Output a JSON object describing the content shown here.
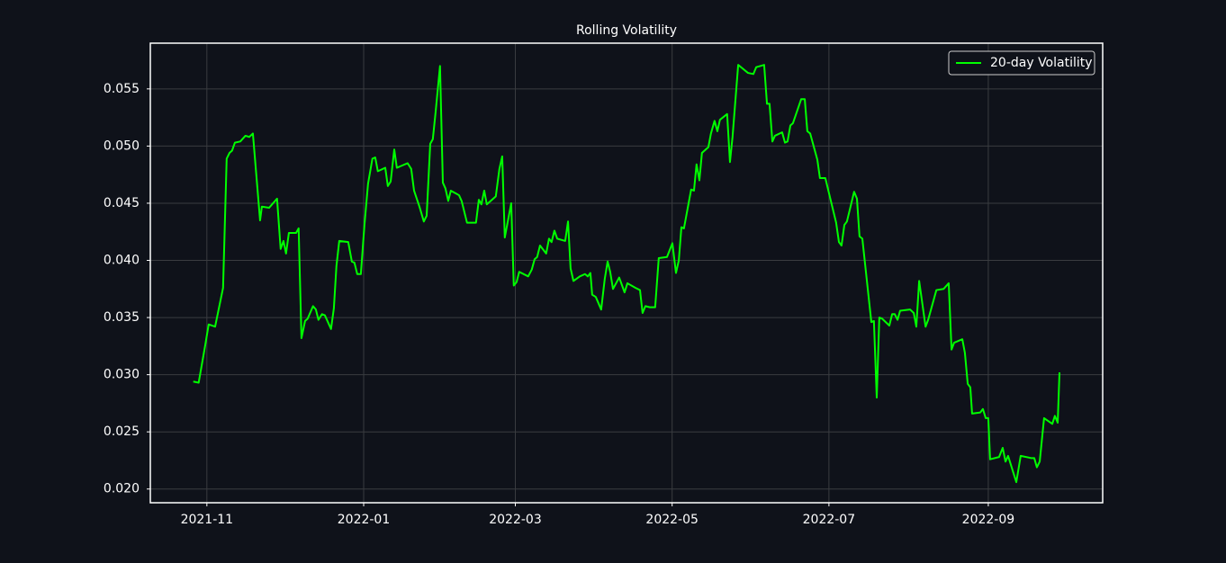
{
  "chart_data": {
    "type": "line",
    "title": "Rolling Volatility",
    "x": [
      -5.3,
      -3.2,
      -0.7,
      0.7,
      3.2,
      6.3,
      7.7,
      8.8,
      9.8,
      10.9,
      13,
      15,
      16.5,
      17.9,
      20.7,
      21.4,
      24.2,
      27.3,
      28.7,
      29.8,
      30.8,
      31.9,
      34.7,
      35.7,
      36.8,
      38.2,
      39.2,
      41.3,
      42.4,
      43.4,
      44.8,
      45.9,
      48.3,
      49.4,
      50.4,
      51.5,
      55,
      56.4,
      57.4,
      58.5,
      59.9,
      61.3,
      62.7,
      64.4,
      65.5,
      66.5,
      69.4,
      70.4,
      71.5,
      72.9,
      73.9,
      76,
      78.1,
      79.5,
      80.6,
      82.7,
      84.4,
      85.5,
      86.9,
      87.9,
      89,
      90.7,
      91.8,
      92.8,
      93.9,
      94.9,
      98.1,
      99.1,
      101.2,
      104.7,
      105.8,
      106.8,
      107.9,
      108.9,
      112.4,
      113.8,
      114.9,
      115.9,
      118.4,
      119.4,
      120.5,
      121.5,
      125,
      126.4,
      127.5,
      128.5,
      129.6,
      132,
      133.1,
      134.1,
      135.2,
      136.3,
      139.4,
      140.5,
      141.5,
      142.6,
      145.1,
      147.1,
      148.2,
      149.2,
      149.9,
      151.3,
      153.4,
      154.8,
      155.9,
      156.9,
      158,
      160.4,
      162.5,
      163.6,
      166.7,
      168.5,
      169.5,
      170.6,
      172.3,
      174.4,
      175.8,
      179,
      181.1,
      182.5,
      183.6,
      184.6,
      185.6,
      188.4,
      189.5,
      190.5,
      191.6,
      192.6,
      195.1,
      196.1,
      197.5,
      198.6,
      199.6,
      202.4,
      203.5,
      204.5,
      206.7,
      210.5,
      212.6,
      213.7,
      216.8,
      217.9,
      218.9,
      220,
      221,
      223.8,
      224.9,
      225.9,
      227,
      228,
      231.2,
      232.6,
      233.6,
      234.7,
      237.5,
      238.5,
      240.6,
      244.8,
      245.9,
      246.9,
      248,
      249,
      251.8,
      252.9,
      253.9,
      255,
      258.5,
      259.5,
      260.6,
      261.6,
      262.7,
      265.5,
      266.6,
      267.6,
      268.7,
      269.7,
      273.6,
      275,
      276,
      277.1,
      279.6,
      280.6,
      283.8,
      286.6,
      288.6,
      289.7,
      290.7,
      293.9,
      294.9,
      296,
      297,
      297.7,
      300.9,
      301.9,
      303,
      304,
      304.7,
      308.2,
      309.6,
      310.7,
      311.7,
      314.9,
      316.6,
      320.8,
      321.9,
      322.9,
      324,
      325.7,
      328.9,
      329.9,
      331,
      331.7
    ],
    "series": [
      {
        "name": "20-day Volatility",
        "color": "#00ff00",
        "values": [
          0.0294,
          0.0293,
          0.0325,
          0.0344,
          0.0342,
          0.0376,
          0.0489,
          0.0494,
          0.0496,
          0.0503,
          0.0504,
          0.0509,
          0.0508,
          0.0511,
          0.0435,
          0.0447,
          0.0446,
          0.0454,
          0.041,
          0.0417,
          0.0406,
          0.0424,
          0.0424,
          0.0428,
          0.0332,
          0.0347,
          0.0349,
          0.036,
          0.0357,
          0.0348,
          0.0353,
          0.0352,
          0.034,
          0.0358,
          0.0395,
          0.0417,
          0.0416,
          0.0399,
          0.0398,
          0.0388,
          0.0388,
          0.0431,
          0.0467,
          0.0489,
          0.049,
          0.0478,
          0.0481,
          0.0465,
          0.0469,
          0.0497,
          0.0481,
          0.0483,
          0.0485,
          0.048,
          0.0461,
          0.0447,
          0.0434,
          0.0439,
          0.0502,
          0.0506,
          0.053,
          0.057,
          0.0468,
          0.0463,
          0.0452,
          0.0461,
          0.0457,
          0.0452,
          0.0433,
          0.0433,
          0.0453,
          0.0449,
          0.0461,
          0.0449,
          0.0456,
          0.048,
          0.0491,
          0.042,
          0.045,
          0.0378,
          0.0381,
          0.039,
          0.0386,
          0.0392,
          0.0401,
          0.0403,
          0.0413,
          0.0406,
          0.0419,
          0.0416,
          0.0426,
          0.0419,
          0.0417,
          0.0434,
          0.0393,
          0.0382,
          0.0386,
          0.0388,
          0.0386,
          0.0389,
          0.037,
          0.0368,
          0.0357,
          0.0384,
          0.0399,
          0.039,
          0.0375,
          0.0385,
          0.0372,
          0.038,
          0.0376,
          0.0374,
          0.0354,
          0.036,
          0.0359,
          0.0359,
          0.0402,
          0.0403,
          0.0415,
          0.0389,
          0.04,
          0.0429,
          0.0428,
          0.0462,
          0.0461,
          0.0484,
          0.047,
          0.0494,
          0.0499,
          0.0511,
          0.0522,
          0.0513,
          0.0523,
          0.0528,
          0.0486,
          0.0508,
          0.0571,
          0.0564,
          0.0563,
          0.0569,
          0.0571,
          0.0537,
          0.0537,
          0.0504,
          0.0509,
          0.0512,
          0.0503,
          0.0504,
          0.0518,
          0.052,
          0.0541,
          0.0541,
          0.0513,
          0.0511,
          0.0488,
          0.0472,
          0.0472,
          0.0433,
          0.0416,
          0.0413,
          0.0431,
          0.0434,
          0.046,
          0.0454,
          0.0421,
          0.0419,
          0.0346,
          0.0347,
          0.028,
          0.035,
          0.0349,
          0.0343,
          0.0353,
          0.0353,
          0.0348,
          0.0356,
          0.0357,
          0.0354,
          0.0342,
          0.0382,
          0.0342,
          0.0348,
          0.0374,
          0.0375,
          0.038,
          0.0322,
          0.0328,
          0.0331,
          0.0319,
          0.0292,
          0.0289,
          0.0266,
          0.0267,
          0.027,
          0.0262,
          0.0262,
          0.0226,
          0.0228,
          0.0236,
          0.0224,
          0.0229,
          0.0206,
          0.0229,
          0.0227,
          0.0227,
          0.0219,
          0.0224,
          0.0262,
          0.0257,
          0.0264,
          0.0258,
          0.0302
        ]
      }
    ],
    "xlim": [
      -22,
      348.5
    ],
    "xticks": [
      {
        "value": 0,
        "label": "2021-11"
      },
      {
        "value": 61,
        "label": "2022-01"
      },
      {
        "value": 120,
        "label": "2022-03"
      },
      {
        "value": 181,
        "label": "2022-05"
      },
      {
        "value": 242,
        "label": "2022-07"
      },
      {
        "value": 304,
        "label": "2022-09"
      }
    ],
    "ylim": [
      0.0188,
      0.059
    ],
    "yticks": [
      {
        "value": 0.02,
        "label": "0.020"
      },
      0.025,
      {
        "value": 0.03,
        "label": "0.030"
      },
      0.035,
      {
        "value": 0.04,
        "label": "0.040"
      },
      0.045,
      {
        "value": 0.05,
        "label": "0.050"
      },
      0.055
    ],
    "grid": true,
    "legend": "upper right"
  }
}
